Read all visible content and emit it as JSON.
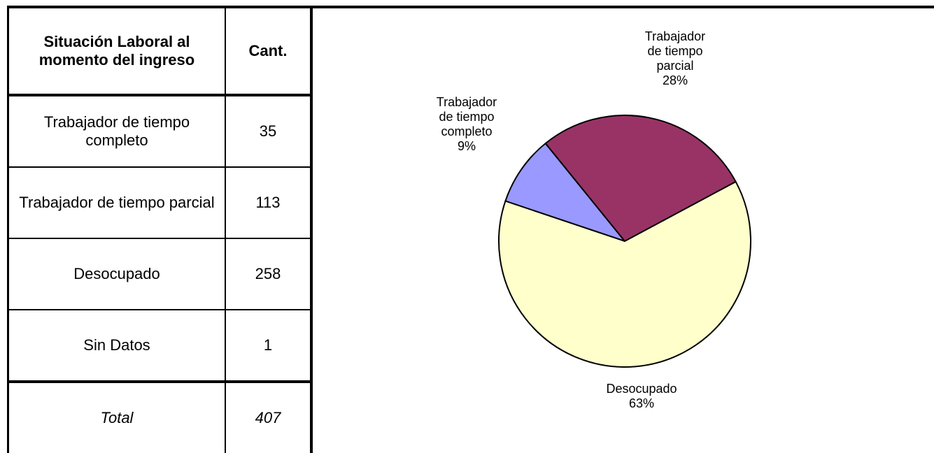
{
  "table": {
    "header": [
      "Situación Laboral al momento del ingreso",
      "Cant."
    ],
    "rows": [
      [
        "Trabajador de tiempo completo",
        35
      ],
      [
        "Trabajador de tiempo parcial",
        113
      ],
      [
        "Desocupado",
        258
      ],
      [
        "Sin Datos",
        1
      ]
    ],
    "total": [
      "Total",
      407
    ]
  },
  "chart_data": {
    "type": "pie",
    "categories": [
      "Trabajador de tiempo completo",
      "Trabajador de tiempo parcial",
      "Desocupado"
    ],
    "values": [
      9,
      28,
      63
    ],
    "value_labels": [
      "9%",
      "28%",
      "63%"
    ],
    "colors": [
      "#9999ff",
      "#993366",
      "#ffffcc"
    ]
  }
}
